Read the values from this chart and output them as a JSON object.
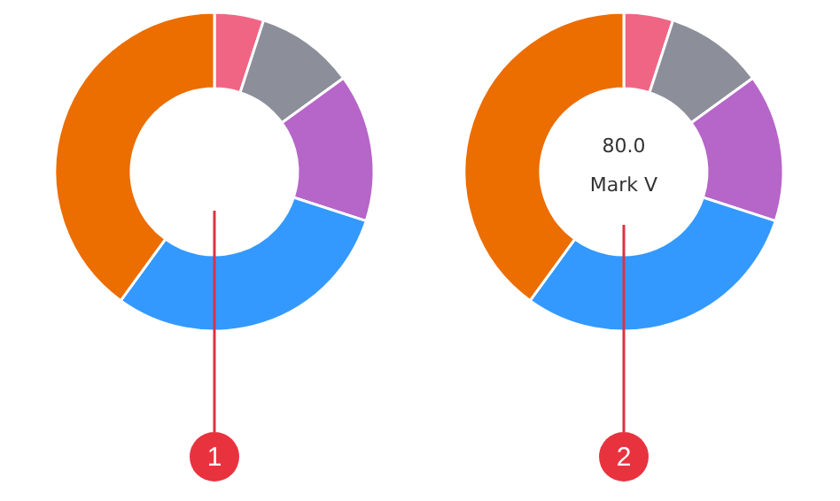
{
  "chart_data": [
    {
      "type": "donut",
      "categories": [
        null,
        null,
        null,
        null,
        null
      ],
      "values": [
        5,
        10,
        15,
        30,
        40
      ],
      "colors": [
        "#f06584",
        "#8c8f99",
        "#b665c9",
        "#3399ff",
        "#ec6d00"
      ],
      "annotations": [
        "1"
      ]
    },
    {
      "type": "donut",
      "categories": [
        null,
        null,
        null,
        null,
        null
      ],
      "values": [
        5,
        10,
        15,
        30,
        40
      ],
      "colors": [
        "#f06584",
        "#8c8f99",
        "#b665c9",
        "#3399ff",
        "#ec6d00"
      ],
      "annotations": [
        "80.0",
        "Mark V",
        "2"
      ]
    }
  ]
}
